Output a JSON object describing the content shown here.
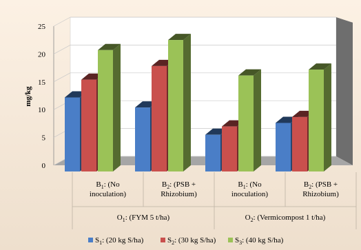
{
  "colors": {
    "background_top": "#fcf1e4",
    "background_bottom": "#eedfcd",
    "wall": "#ffffff",
    "floor": "#a6a6a6",
    "side_wall": "#6e6e6e",
    "series": [
      "#4a7ec7",
      "#c9504d",
      "#9bc257"
    ]
  },
  "chart_data": {
    "type": "bar",
    "style": "3d-clustered",
    "ylabel": "mg/kg",
    "ylim": [
      0,
      25
    ],
    "yticks": [
      "0",
      "5",
      "10",
      "15",
      "20",
      "25"
    ],
    "grid": true,
    "legend_position": "bottom",
    "categories": [
      {
        "sub": "B",
        "num": "1",
        "line1": ": (No",
        "line2": "inoculation)"
      },
      {
        "sub": "B",
        "num": "2",
        "line1": ": (PSB +",
        "line2": "Rhizobium)"
      },
      {
        "sub": "B",
        "num": "1",
        "line1": ": (No",
        "line2": "inoculation)"
      },
      {
        "sub": "B",
        "num": "2",
        "line1": ": (PSB +",
        "line2": "Rhizobium)"
      }
    ],
    "groups": [
      {
        "sub": "O",
        "num": "1",
        "text": ": (FYM 5 t/ha)"
      },
      {
        "sub": "O",
        "num": "2",
        "text": ": (Vermicompost 1 t/ha)"
      }
    ],
    "series": [
      {
        "name": "S1",
        "sub": "S",
        "num": "1",
        "text": ": (20 kg S/ha)",
        "values": [
          12.5,
          10.8,
          6.2,
          8.2
        ]
      },
      {
        "name": "S2",
        "sub": "S",
        "num": "2",
        "text": ": (30 kg S/ha)",
        "values": [
          15.5,
          17.8,
          7.6,
          9.2
        ]
      },
      {
        "name": "S3",
        "sub": "S",
        "num": "3",
        "text": ": (40 kg S/ha)",
        "values": [
          20.5,
          22.2,
          16.2,
          17.2
        ]
      }
    ]
  }
}
